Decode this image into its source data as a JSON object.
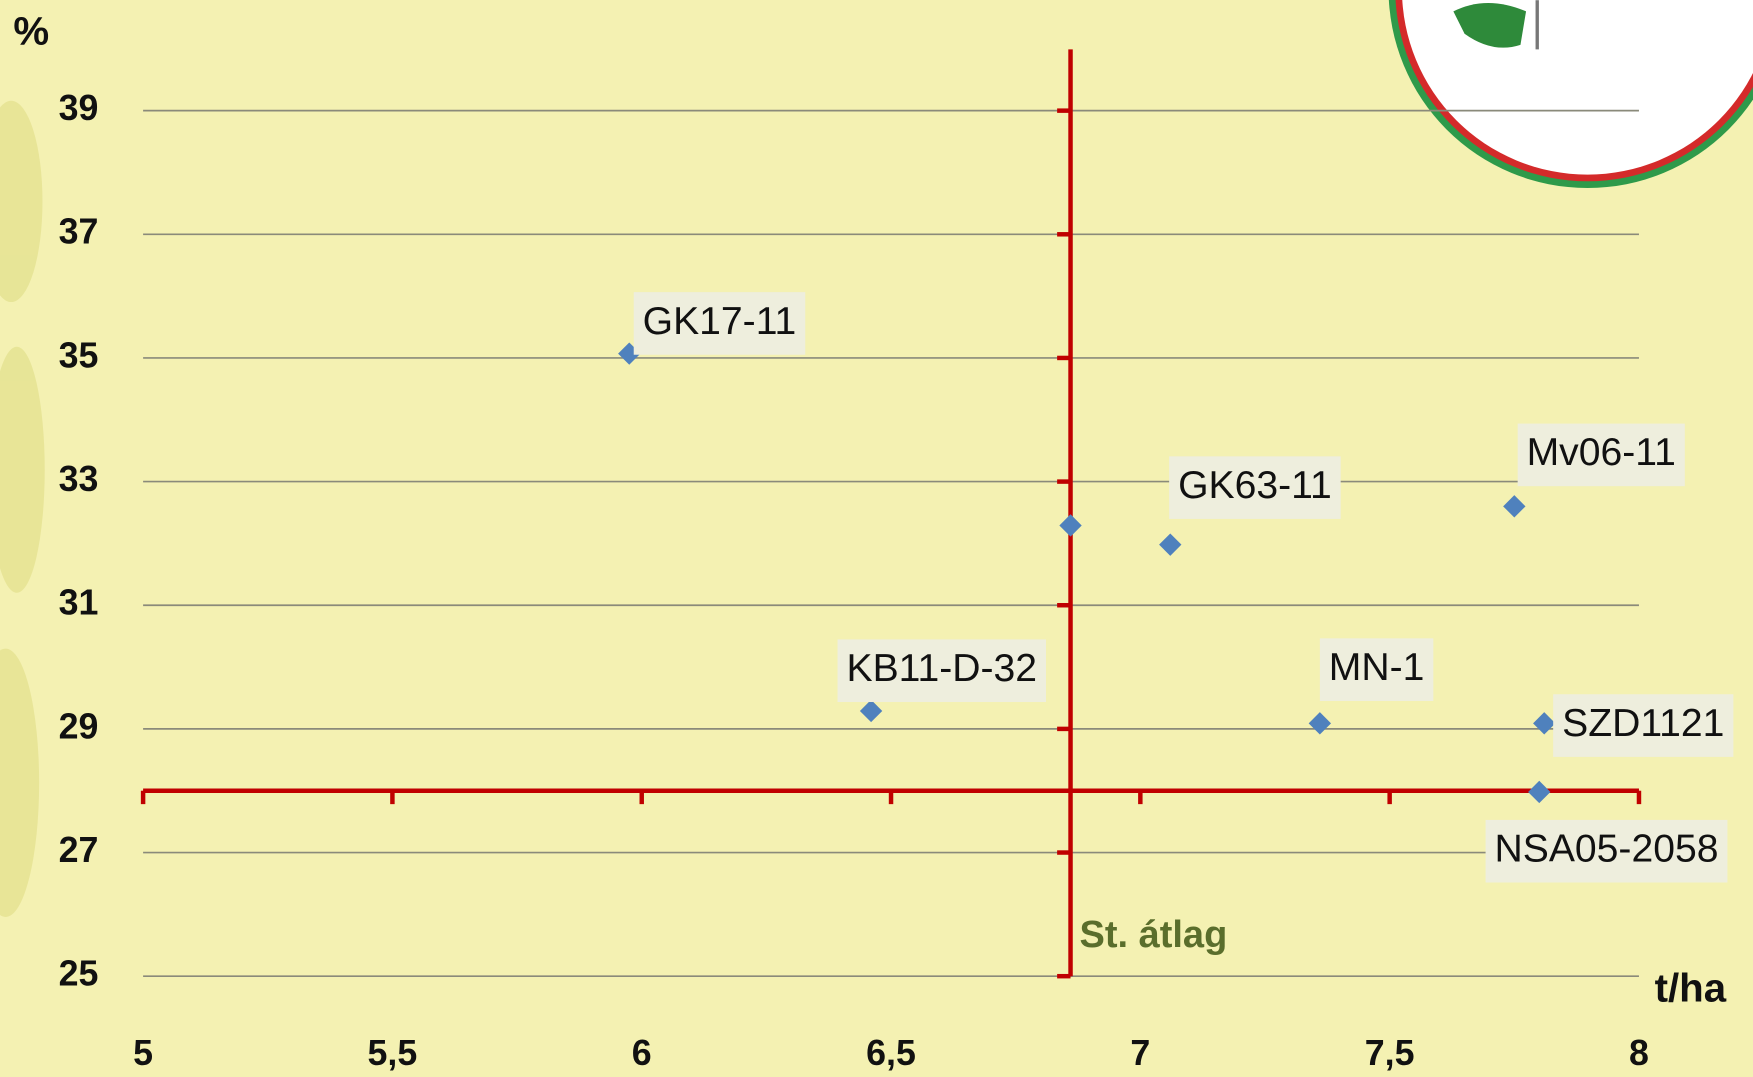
{
  "chart_data": {
    "type": "scatter",
    "y_axis_label": "%",
    "x_axis_label": "t/ha",
    "reference_label": "St. átlag",
    "x_reference": 6.86,
    "y_reference": 28,
    "xlim": [
      5,
      8
    ],
    "xticks": [
      5,
      {
        "value": 5.5,
        "label": "5,5"
      },
      6,
      {
        "value": 6.5,
        "label": "6,5"
      },
      7,
      {
        "value": 7.5,
        "label": "7,5"
      },
      8
    ],
    "ylim": [
      25,
      40
    ],
    "yticks": [
      25,
      27,
      29,
      31,
      33,
      35,
      37,
      39
    ],
    "grid": true,
    "reference_color": "#c00000",
    "series": [
      {
        "name": null,
        "color": "#4f81bd",
        "labels": [
          "GK17-11",
          null,
          "GK63-11",
          "Mv06-11",
          "KB11-D-32",
          "MN-1",
          "SZD1121",
          "NSA05-2058"
        ],
        "x": [
          5.975,
          6.86,
          7.06,
          7.75,
          6.46,
          7.36,
          7.81,
          7.8
        ],
        "values": [
          35.07,
          32.29,
          31.98,
          32.6,
          29.29,
          29.09,
          29.09,
          27.98
        ]
      }
    ]
  }
}
